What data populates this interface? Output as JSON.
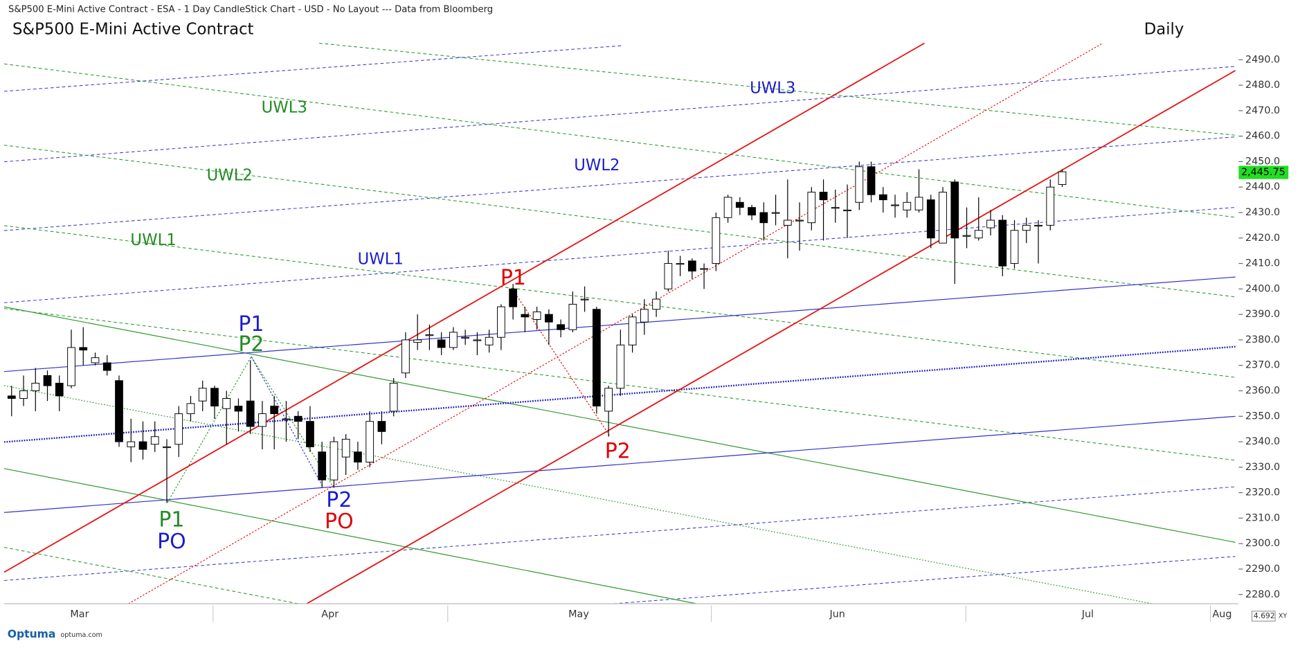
{
  "window_title": "S&P500 E-Mini Active Contract - ESA - 1 Day CandleStick Chart - USD - No Layout --- Data from Bloomberg",
  "chart_data": {
    "type": "candlestick",
    "title": "S&P500 E-Mini Active Contract",
    "period": "Daily",
    "categories": [
      null,
      null,
      null,
      null,
      null,
      null,
      null,
      null,
      null,
      null,
      null,
      null,
      null,
      null,
      null,
      null,
      null,
      null,
      null,
      null,
      null,
      null,
      null,
      null,
      null,
      null,
      null,
      null,
      null,
      null,
      null,
      null,
      null,
      null,
      null,
      null,
      null,
      null,
      null,
      null,
      null,
      null,
      null,
      null,
      null,
      null,
      null,
      null,
      null,
      null,
      null,
      null,
      null,
      null,
      null,
      null,
      null,
      null,
      null,
      null,
      null,
      null,
      null,
      null,
      null,
      null,
      null,
      null,
      null,
      null,
      null,
      null,
      null,
      null,
      null,
      null,
      null,
      null,
      null,
      null,
      null,
      null,
      null,
      null,
      null,
      null,
      null,
      null,
      null
    ],
    "open": [
      2358,
      2357,
      2360,
      2366,
      2363,
      2362,
      2377,
      2371,
      2371,
      2364,
      2338,
      2340,
      2339,
      2338,
      2339,
      2351,
      2356,
      2361,
      2353,
      2354,
      2356,
      2346,
      2354,
      2349,
      2350,
      2348,
      2336,
      2325,
      2334,
      2336,
      2332,
      2348,
      2352,
      2367,
      2379,
      2382,
      2380,
      2377,
      2381,
      2380,
      2378,
      2381,
      2400,
      2390,
      2388,
      2390,
      2386,
      2384,
      2396,
      2392,
      2352,
      2361,
      2378,
      2387,
      2392,
      2400,
      2410,
      2411,
      2408,
      2410,
      2428,
      2434,
      2432,
      2430,
      2430,
      2425,
      2427,
      2426,
      2438,
      2432,
      2431,
      2434,
      2448,
      2437,
      2433,
      2431,
      2431,
      2435,
      2418,
      2442,
      2421,
      2420,
      2424,
      2427,
      2410,
      2423,
      2425,
      2425,
      2441
    ],
    "high": [
      2362,
      2366,
      2369,
      2368,
      2366,
      2384,
      2385,
      2375,
      2374,
      2366,
      2349,
      2348,
      2348,
      2341,
      2354,
      2358,
      2364,
      2362,
      2360,
      2357,
      2372,
      2356,
      2358,
      2356,
      2352,
      2354,
      2340,
      2342,
      2343,
      2340,
      2352,
      2352,
      2365,
      2383,
      2390,
      2386,
      2383,
      2385,
      2384,
      2383,
      2384,
      2394,
      2402,
      2393,
      2393,
      2392,
      2388,
      2399,
      2401,
      2393,
      2362,
      2384,
      2390,
      2396,
      2399,
      2415,
      2413,
      2412,
      2410,
      2430,
      2437,
      2436,
      2433,
      2434,
      2437,
      2443,
      2434,
      2440,
      2443,
      2439,
      2441,
      2450,
      2450,
      2440,
      2437,
      2438,
      2447,
      2437,
      2440,
      2443,
      2432,
      2436,
      2431,
      2429,
      2427,
      2428,
      2427,
      2443,
      2447
    ],
    "low": [
      2350,
      2354,
      2352,
      2356,
      2352,
      2361,
      2370,
      2370,
      2366,
      2338,
      2332,
      2333,
      2336,
      2316,
      2334,
      2348,
      2352,
      2349,
      2339,
      2344,
      2343,
      2337,
      2337,
      2340,
      2341,
      2336,
      2322,
      2322,
      2327,
      2329,
      2330,
      2339,
      2350,
      2365,
      2376,
      2376,
      2374,
      2376,
      2378,
      2374,
      2375,
      2376,
      2388,
      2383,
      2384,
      2378,
      2381,
      2383,
      2391,
      2351,
      2342,
      2358,
      2375,
      2382,
      2389,
      2399,
      2405,
      2404,
      2400,
      2407,
      2426,
      2429,
      2427,
      2419,
      2425,
      2412,
      2415,
      2423,
      2419,
      2426,
      2420,
      2431,
      2434,
      2430,
      2428,
      2428,
      2430,
      2416,
      2418,
      2402,
      2416,
      2419,
      2421,
      2405,
      2408,
      2418,
      2410,
      2423,
      2440
    ],
    "close": [
      2357,
      2360,
      2363,
      2362,
      2358,
      2377,
      2376,
      2373,
      2368,
      2340,
      2340,
      2337,
      2342,
      2338,
      2351,
      2355,
      2361,
      2354,
      2357,
      2352,
      2346,
      2351,
      2351,
      2349,
      2348,
      2338,
      2325,
      2340,
      2341,
      2332,
      2348,
      2344,
      2363,
      2380,
      2380,
      2382,
      2377,
      2383,
      2381,
      2380,
      2381,
      2393,
      2393,
      2389,
      2391,
      2387,
      2384,
      2394,
      2396,
      2354,
      2361,
      2378,
      2389,
      2392,
      2396,
      2410,
      2410,
      2407,
      2408,
      2428,
      2436,
      2432,
      2429,
      2426,
      2430,
      2427,
      2427,
      2438,
      2435,
      2432,
      2431,
      2448,
      2437,
      2435,
      2433,
      2434,
      2436,
      2420,
      2438,
      2420,
      2421,
      2423,
      2427,
      2409,
      2423,
      2425,
      2425,
      2440,
      2446
    ],
    "ylim": [
      2276.4,
      2496.5
    ],
    "yticks": [
      {
        "value": 2280,
        "label": "2280.0"
      },
      {
        "value": 2290,
        "label": "2290.0"
      },
      {
        "value": 2300,
        "label": "2300.0"
      },
      {
        "value": 2310,
        "label": "2310.0"
      },
      {
        "value": 2320,
        "label": "2320.0"
      },
      {
        "value": 2330,
        "label": "2330.0"
      },
      {
        "value": 2340,
        "label": "2340.0"
      },
      {
        "value": 2350,
        "label": "2350.0"
      },
      {
        "value": 2360,
        "label": "2360.0"
      },
      {
        "value": 2370,
        "label": "2370.0"
      },
      {
        "value": 2380,
        "label": "2380.0"
      },
      {
        "value": 2390,
        "label": "2390.0"
      },
      {
        "value": 2400,
        "label": "2400.0"
      },
      {
        "value": 2410,
        "label": "2410.0"
      },
      {
        "value": 2420,
        "label": "2420.0"
      },
      {
        "value": 2430,
        "label": "2430.0"
      },
      {
        "value": 2440,
        "label": "2440.0"
      },
      {
        "value": 2450,
        "label": "2450.0"
      },
      {
        "value": 2460,
        "label": "2460.0"
      },
      {
        "value": 2470,
        "label": "2470.0"
      },
      {
        "value": 2480,
        "label": "2480.0"
      },
      {
        "value": 2490,
        "label": "2490.0"
      }
    ],
    "xticks": [
      "Mar",
      "Apr",
      "May",
      "Jun",
      "Jul",
      "Aug"
    ],
    "last_price": {
      "value": 2445.75,
      "label": "2,445.75"
    },
    "annotations": [
      {
        "text": "UWL3",
        "color": "#228b22"
      },
      {
        "text": "UWL2",
        "color": "#228b22"
      },
      {
        "text": "UWL1",
        "color": "#228b22"
      },
      {
        "text": "UWL3",
        "color": "#1c1cd0"
      },
      {
        "text": "UWL2",
        "color": "#1c1cd0"
      },
      {
        "text": "UWL1",
        "color": "#1c1cd0"
      },
      {
        "text": "P1",
        "color": "#1c1cd0"
      },
      {
        "text": "P2",
        "color": "#228b22"
      },
      {
        "text": "P1",
        "color": "#228b22"
      },
      {
        "text": "PO",
        "color": "#1c1cd0"
      },
      {
        "text": "P2",
        "color": "#1c1cd0"
      },
      {
        "text": "PO",
        "color": "#e00000"
      },
      {
        "text": "P1",
        "color": "#e00000"
      },
      {
        "text": "P2",
        "color": "#e00000"
      }
    ]
  },
  "footer": {
    "brand": "Optuma",
    "site": "optuma.com",
    "zoom": "4.692",
    "mode": "XY"
  }
}
